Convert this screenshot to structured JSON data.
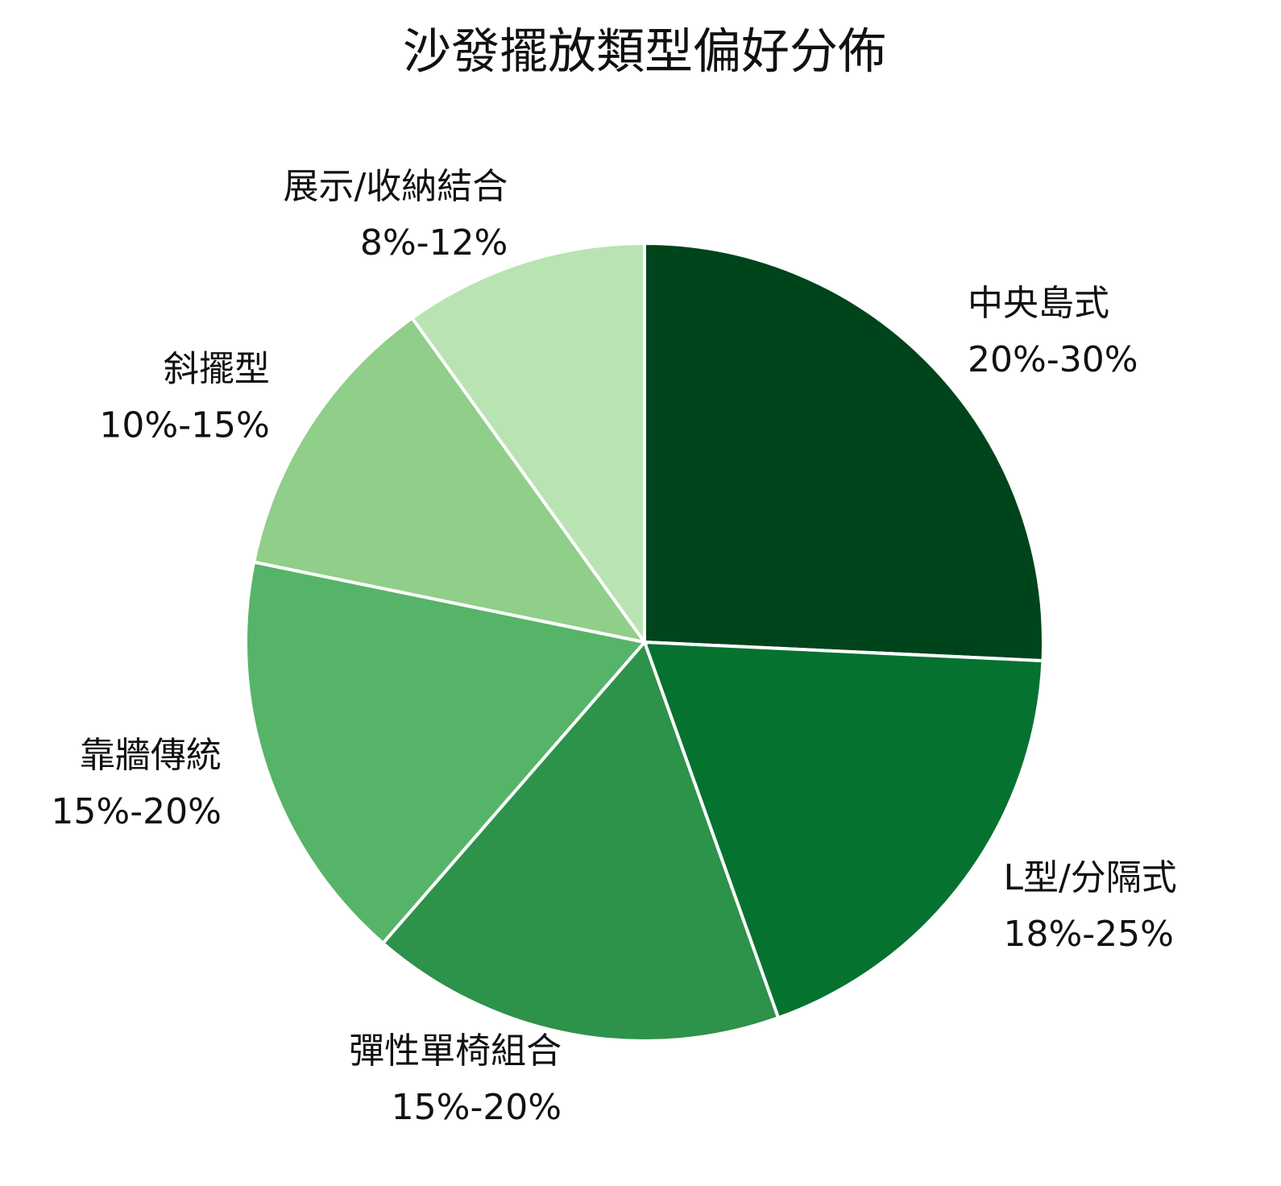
{
  "chart_data": {
    "type": "pie",
    "title": "沙發擺放類型偏好分佈",
    "categories": [
      "中央島式",
      "L型/分隔式",
      "彈性單椅組合",
      "靠牆傳統",
      "斜擺型",
      "展示/收納結合"
    ],
    "values": [
      26,
      19,
      17,
      17,
      12,
      10
    ],
    "ranges": [
      "20%-30%",
      "18%-25%",
      "15%-20%",
      "15%-20%",
      "10%-15%",
      "8%-12%"
    ],
    "colors": [
      "#00441b",
      "#067230",
      "#2d924a",
      "#56b468",
      "#8fcf89",
      "#b9e3b3"
    ]
  }
}
